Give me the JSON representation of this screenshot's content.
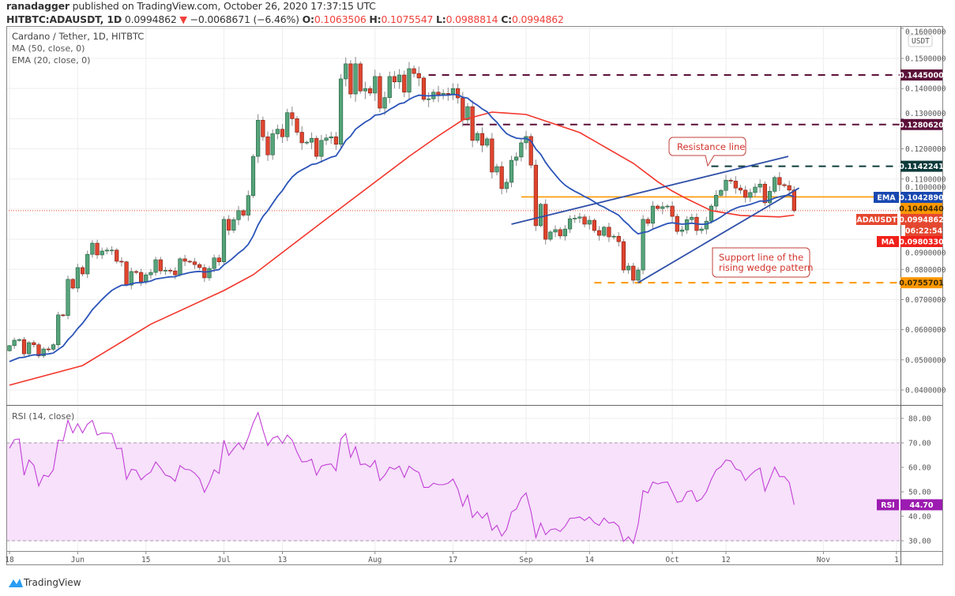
{
  "header": {
    "author": "ranadagger",
    "published": "published on TradingView.com, October 26, 2020 17:37:15 UTC",
    "symbol": "HITBTC:ADAUSDT, 1D",
    "last": "0.0994862",
    "change": "−0.0068671 (−6.46%)",
    "o_label": "O:",
    "o": "0.1063506",
    "h_label": "H:",
    "h": "0.1075547",
    "l_label": "L:",
    "l": "0.0988814",
    "c_label": "C:",
    "c": "0.0994862"
  },
  "legend": {
    "title": "Cardano / Tether, 1D, HITBTC",
    "ma": "MA (50, close, 0)",
    "ema": "EMA (20, close, 0)",
    "rsi": "RSI (14, close)"
  },
  "currency_badge": "USDT",
  "footer": {
    "brand": "TradingView"
  },
  "colors": {
    "up": "#56a47b",
    "down": "#e0452e",
    "ema": "#2b54b8",
    "ma": "#f2352b",
    "rsi": "#c23fd6",
    "level_dark": "#5b0f38",
    "level_teal": "#0d3b3b",
    "orange": "#ff9800"
  },
  "chart_data": {
    "type": "candlestick",
    "start_date": "2020-05-18",
    "first_open": 0.053,
    "last_candle": {
      "o": 0.1063506,
      "h": 0.1075547,
      "l": 0.0988814,
      "c": 0.0994862
    },
    "closes": [
      0.0547,
      0.0565,
      0.0567,
      0.052,
      0.0557,
      0.055,
      0.0513,
      0.0536,
      0.0535,
      0.055,
      0.0649,
      0.0647,
      0.0767,
      0.0738,
      0.0806,
      0.0785,
      0.085,
      0.0887,
      0.0848,
      0.0861,
      0.0864,
      0.0864,
      0.0827,
      0.0825,
      0.0748,
      0.0793,
      0.079,
      0.0759,
      0.0782,
      0.079,
      0.0832,
      0.0795,
      0.0797,
      0.0795,
      0.0782,
      0.0835,
      0.0827,
      0.0825,
      0.0816,
      0.0806,
      0.0772,
      0.0803,
      0.0838,
      0.0825,
      0.0966,
      0.093,
      0.0965,
      0.0995,
      0.098,
      0.1045,
      0.1175,
      0.1295,
      0.124,
      0.118,
      0.125,
      0.1265,
      0.124,
      0.132,
      0.13,
      0.1255,
      0.122,
      0.1222,
      0.1235,
      0.1175,
      0.1228,
      0.1236,
      0.124,
      0.1215,
      0.1432,
      0.1482,
      0.1382,
      0.1482,
      0.1392,
      0.14,
      0.1385,
      0.144,
      0.1335,
      0.137,
      0.144,
      0.1422,
      0.1445,
      0.1388,
      0.1466,
      0.145,
      0.1435,
      0.1364,
      0.1366,
      0.1388,
      0.138,
      0.1384,
      0.1382,
      0.14,
      0.1369,
      0.1296,
      0.134,
      0.1228,
      0.1251,
      0.1212,
      0.1233,
      0.1123,
      0.1141,
      0.1068,
      0.1089,
      0.1162,
      0.1173,
      0.122,
      0.1241,
      0.1146,
      0.0945,
      0.1016,
      0.09,
      0.0924,
      0.0932,
      0.0911,
      0.0934,
      0.0968,
      0.097,
      0.0974,
      0.095,
      0.0963,
      0.0929,
      0.0913,
      0.094,
      0.0908,
      0.091,
      0.0892,
      0.0798,
      0.0811,
      0.0764,
      0.0798,
      0.0966,
      0.0953,
      0.101,
      0.1002,
      0.1008,
      0.101,
      0.0976,
      0.0926,
      0.0931,
      0.0965,
      0.0973,
      0.0929,
      0.0934,
      0.096,
      0.101,
      0.1046,
      0.1062,
      0.1096,
      0.1093,
      0.107,
      0.1063,
      0.1039,
      0.1055,
      0.1073,
      0.1083,
      0.1021,
      0.1059,
      0.1105,
      0.1081,
      0.1078,
      0.1063,
      0.0994862
    ],
    "ema20_seed": 0.0494,
    "ma50_points": [
      [
        0,
        0.0416
      ],
      [
        15,
        0.0481
      ],
      [
        29,
        0.0618
      ],
      [
        44,
        0.073
      ],
      [
        50,
        0.0782
      ],
      [
        67,
        0.0992
      ],
      [
        82,
        0.1175
      ],
      [
        88,
        0.1243
      ],
      [
        93,
        0.1296
      ],
      [
        99,
        0.1322
      ],
      [
        106,
        0.1314
      ],
      [
        117,
        0.1254
      ],
      [
        128,
        0.1152
      ],
      [
        133,
        0.1091
      ],
      [
        136,
        0.106
      ],
      [
        139,
        0.1034
      ],
      [
        144,
        0.0995
      ],
      [
        150,
        0.0979
      ],
      [
        158,
        0.0974
      ],
      [
        161,
        0.098
      ]
    ],
    "rsi": [
      67.8,
      71.3,
      71.6,
      56.8,
      63,
      60.8,
      52.4,
      56.8,
      56.2,
      59,
      71.1,
      70.8,
      79.2,
      74.1,
      77.8,
      74.1,
      77.6,
      79.2,
      73.2,
      74,
      74,
      73.8,
      67.6,
      67.8,
      55.1,
      59.2,
      58.8,
      54.9,
      56.8,
      58.1,
      62.2,
      59.7,
      56.8,
      56.2,
      54.3,
      60.7,
      59.2,
      59,
      57.6,
      55.4,
      49.8,
      53.8,
      59,
      57.5,
      71.1,
      64.9,
      67.6,
      70,
      67.3,
      72.2,
      78.1,
      82.4,
      75.4,
      68.9,
      71.9,
      72.7,
      69.8,
      73.2,
      71.1,
      66.2,
      62.2,
      62.4,
      63.3,
      56.8,
      60.5,
      61.1,
      61.4,
      58.6,
      71.6,
      73.8,
      64.1,
      68.4,
      61.1,
      61.4,
      60.1,
      62.8,
      54.6,
      56.8,
      60.1,
      59.2,
      60.5,
      55.9,
      60.5,
      58.9,
      57.9,
      51.8,
      51.8,
      53.5,
      52.9,
      52.9,
      53.5,
      55.2,
      51.1,
      44.1,
      48.6,
      39.5,
      41.9,
      39.2,
      41.4,
      34.3,
      36.3,
      31.9,
      34.6,
      41.7,
      43,
      47.5,
      49.5,
      41.9,
      31.3,
      37.2,
      32.5,
      34.5,
      34.9,
      33.8,
      35.9,
      39.2,
      39.3,
      39.7,
      38.3,
      39.7,
      37.4,
      36.3,
      39.3,
      37.2,
      37.6,
      35.9,
      29.7,
      31.6,
      28.9,
      36.7,
      50.5,
      49.5,
      54,
      53.2,
      53.8,
      54,
      50,
      45.7,
      46.2,
      50,
      50.5,
      46,
      47.1,
      50,
      55.1,
      58.9,
      60.3,
      63,
      62.6,
      59.4,
      58.6,
      54.6,
      56.8,
      58.6,
      59.7,
      50.3,
      55.1,
      60.1,
      56.2,
      56.2,
      53.8,
      44.7
    ],
    "rsi_bands": [
      30,
      70
    ],
    "price_ticks": [
      "0.1600000",
      "0.1500000",
      "0.1400000",
      "0.1300000",
      "0.1200000",
      "0.1100000",
      "0.1000000",
      "0.0900000",
      "0.0800000",
      "0.0700000",
      "0.0600000",
      "0.0500000",
      "0.0400000"
    ],
    "rsi_ticks": [
      "80.00",
      "70.00",
      "60.00",
      "50.00",
      "40.00",
      "30.00"
    ],
    "x_ticks": [
      {
        "label": "18",
        "day": 0
      },
      {
        "label": "Jun",
        "day": 14
      },
      {
        "label": "15",
        "day": 28
      },
      {
        "label": "Jul",
        "day": 44
      },
      {
        "label": "13",
        "day": 56
      },
      {
        "label": "Aug",
        "day": 75
      },
      {
        "label": "17",
        "day": 91
      },
      {
        "label": "Sep",
        "day": 106
      },
      {
        "label": "14",
        "day": 119
      },
      {
        "label": "Oct",
        "day": 136
      },
      {
        "label": "12",
        "day": 147
      },
      {
        "label": "Nov",
        "day": 167
      },
      {
        "label": "1",
        "day": 182
      }
    ],
    "levels": [
      {
        "value": 0.1445,
        "label": "0.1445000",
        "style": "dashed",
        "color": "#5b0f38",
        "from_day": 86
      },
      {
        "value": 0.128062,
        "label": "0.1280620",
        "style": "dashed",
        "color": "#5b0f38",
        "from_day": 93
      },
      {
        "value": 0.1142241,
        "label": "0.1142241",
        "style": "dashed",
        "color": "#0d3b3b",
        "from_day": 144
      },
      {
        "value": 0.104044,
        "label": "0.1040440",
        "style": "solid",
        "color": "#ff9800",
        "from_day": 105
      },
      {
        "value": 0.0755701,
        "label": "0.0755701",
        "style": "dashed",
        "color": "#ff9800",
        "from_day": 120
      }
    ],
    "trendlines": [
      {
        "name": "resistance",
        "from": [
          103,
          0.095
        ],
        "to": [
          159.8,
          0.1175
        ]
      },
      {
        "name": "support",
        "from": [
          129,
          0.0756
        ],
        "to": [
          162,
          0.107
        ]
      }
    ],
    "annotations": {
      "resistance": "Resistance line",
      "support_1": "Support line of the",
      "support_2": "rising wedge pattern"
    }
  },
  "tags": {
    "ema_label": "EMA",
    "ema_value": "0.1042890",
    "ema": 0.104289,
    "sym_label": "ADAUSDT",
    "sym_value": "0.0994862",
    "sym": 0.0994862,
    "timer": "06:22:54",
    "ma_label": "MA",
    "ma_value": "0.0980330",
    "ma": 0.098033,
    "rsi_label": "RSI",
    "rsi_value": "44.70",
    "rsi": 44.7
  }
}
